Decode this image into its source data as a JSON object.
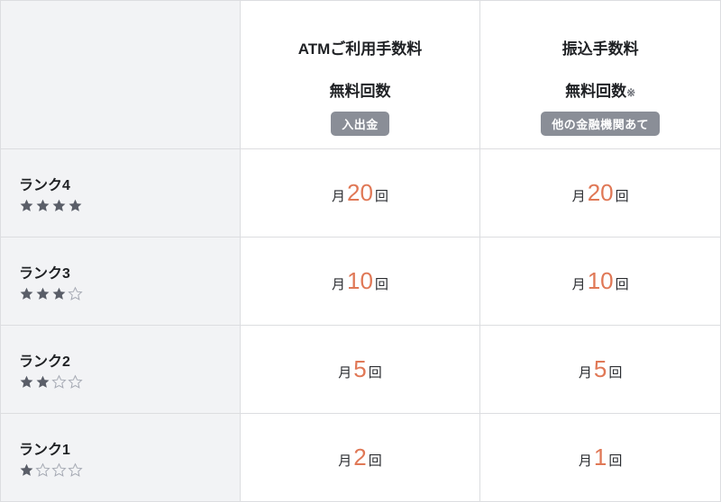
{
  "colors": {
    "header_bg_blank": "#f2f3f5",
    "header_bg_col": "#ffffff",
    "border": "#dcdde0",
    "text": "#1f2124",
    "badge_bg": "#8a8e97",
    "badge_text": "#ffffff",
    "accent": "#e07856",
    "rank_bg": "#f2f3f5",
    "star_fill": "#5a5e68",
    "star_empty_stroke": "#a5a9b3"
  },
  "columns": [
    {
      "title_line1": "ATMご利用手数料",
      "title_line2": "無料回数",
      "note": "",
      "badge": "入出金"
    },
    {
      "title_line1": "振込手数料",
      "title_line2": "無料回数",
      "note": "※",
      "badge": "他の金融機関あて"
    }
  ],
  "value_prefix": "月",
  "value_suffix": "回",
  "rows": [
    {
      "rank_label": "ランク4",
      "stars_filled": 4,
      "stars_total": 4,
      "values": [
        "20",
        "20"
      ]
    },
    {
      "rank_label": "ランク3",
      "stars_filled": 3,
      "stars_total": 4,
      "values": [
        "10",
        "10"
      ]
    },
    {
      "rank_label": "ランク2",
      "stars_filled": 2,
      "stars_total": 4,
      "values": [
        "5",
        "5"
      ]
    },
    {
      "rank_label": "ランク1",
      "stars_filled": 1,
      "stars_total": 4,
      "values": [
        "2",
        "1"
      ]
    }
  ]
}
